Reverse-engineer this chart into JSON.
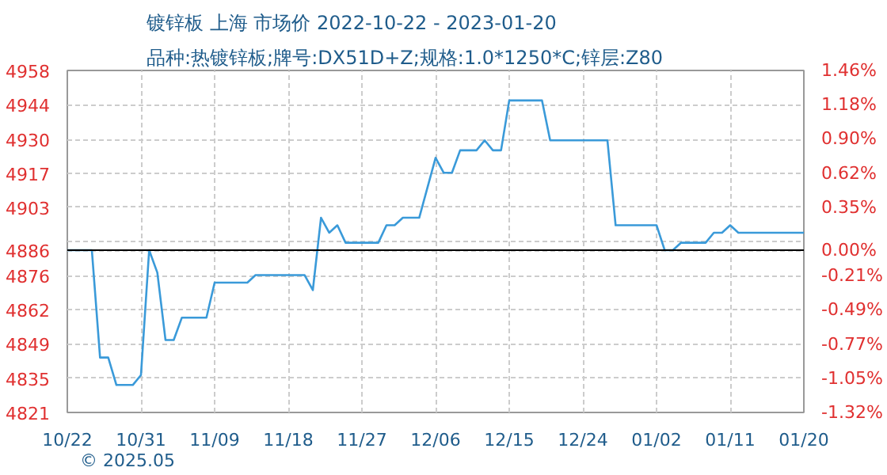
{
  "chart_data": {
    "type": "line",
    "title": "镀锌板 上海 市场价 2022-10-22 - 2023-01-20",
    "subtitle": "品种:热镀锌板;牌号:DX51D+Z;规格:1.0*1250*C;锌层:Z80",
    "annotations": [
      "© 2025.05"
    ],
    "x": [
      "2022-10-22",
      "2022-10-25",
      "2022-10-26",
      "2022-10-27",
      "2022-10-28",
      "2022-10-30",
      "2022-10-31",
      "2022-11-01",
      "2022-11-02",
      "2022-11-03",
      "2022-11-04",
      "2022-11-05",
      "2022-11-08",
      "2022-11-09",
      "2022-11-13",
      "2022-11-14",
      "2022-11-20",
      "2022-11-21",
      "2022-11-22",
      "2022-11-23",
      "2022-11-24",
      "2022-11-25",
      "2022-11-29",
      "2022-11-30",
      "2022-12-01",
      "2022-12-02",
      "2022-12-04",
      "2022-12-06",
      "2022-12-07",
      "2022-12-08",
      "2022-12-09",
      "2022-12-11",
      "2022-12-12",
      "2022-12-13",
      "2022-12-14",
      "2022-12-15",
      "2022-12-19",
      "2022-12-20",
      "2022-12-27",
      "2022-12-28",
      "2023-01-02",
      "2023-01-03",
      "2023-01-04",
      "2023-01-05",
      "2023-01-08",
      "2023-01-09",
      "2023-01-10",
      "2023-01-11",
      "2023-01-12",
      "2023-01-20"
    ],
    "series": [
      {
        "color": "#3a9ad9",
        "values": [
          4886,
          4886,
          4843,
          4843,
          4832,
          4832,
          4836,
          4886,
          4877,
          4850,
          4850,
          4859,
          4859,
          4873,
          4873,
          4876,
          4876,
          4870,
          4899,
          4893,
          4896,
          4889,
          4889,
          4896,
          4896,
          4899,
          4899,
          4923,
          4917,
          4917,
          4926,
          4926,
          4930,
          4926,
          4926,
          4946,
          4946,
          4930,
          4930,
          4896,
          4896,
          4886,
          4886,
          4889,
          4889,
          4893,
          4893,
          4896,
          4893,
          4893
        ]
      }
    ],
    "xlim": [
      "2022-10-22",
      "2023-01-20"
    ],
    "xticks": [
      {
        "value": "2022-10-22",
        "label": "10/22"
      },
      {
        "value": "2022-10-31",
        "label": "10/31"
      },
      {
        "value": "2022-11-09",
        "label": "11/09"
      },
      {
        "value": "2022-11-18",
        "label": "11/18"
      },
      {
        "value": "2022-11-27",
        "label": "11/27"
      },
      {
        "value": "2022-12-06",
        "label": "12/06"
      },
      {
        "value": "2022-12-15",
        "label": "12/15"
      },
      {
        "value": "2022-12-24",
        "label": "12/24"
      },
      {
        "value": "2023-01-02",
        "label": "01/02"
      },
      {
        "value": "2023-01-11",
        "label": "01/11"
      },
      {
        "value": "2023-01-20",
        "label": "01/20"
      }
    ],
    "ylim": [
      4821,
      4958
    ],
    "yticks": [
      4958,
      {
        "value": 4944.3,
        "label": "4944"
      },
      {
        "value": 4930.4,
        "label": "4930"
      },
      {
        "value": 4916.9,
        "label": "4917"
      },
      {
        "value": 4903.2,
        "label": "4903"
      },
      {
        "value": 4889.5,
        "label": null
      },
      4886,
      {
        "value": 4875.8,
        "label": "4876"
      },
      {
        "value": 4862.1,
        "label": "4862"
      },
      {
        "value": 4848.5,
        "label": "4849"
      },
      {
        "value": 4834.7,
        "label": "4835"
      },
      4821
    ],
    "y2lim": [
      -1.32,
      1.46
    ],
    "y2ticks": [
      {
        "value": 1.46,
        "label": "1.46%"
      },
      {
        "value": 1.182,
        "label": "1.18%"
      },
      {
        "value": 0.904,
        "label": "0.90%"
      },
      {
        "value": 0.624,
        "label": "0.62%"
      },
      {
        "value": 0.348,
        "label": "0.35%"
      },
      {
        "value": 0,
        "label": "0.00%"
      },
      {
        "value": -0.208,
        "label": "-0.21%"
      },
      {
        "value": -0.486,
        "label": "-0.49%"
      },
      {
        "value": -0.766,
        "label": "-0.77%"
      },
      {
        "value": -1.046,
        "label": "-1.05%"
      },
      {
        "value": -1.32,
        "label": "-1.32%"
      }
    ],
    "ref_lines": [
      {
        "axis": "y",
        "value": 4886,
        "color": "#000000"
      }
    ],
    "grid": true,
    "marker": "none",
    "line_style": "solid"
  }
}
